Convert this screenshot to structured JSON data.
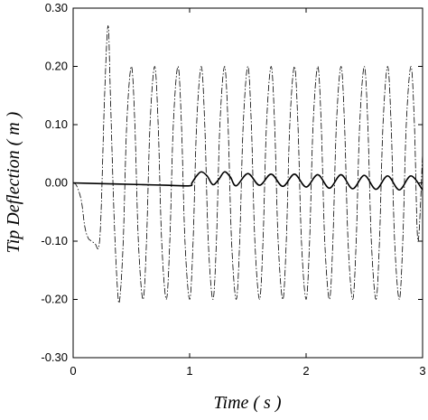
{
  "chart_data": {
    "type": "line",
    "xlabel": "Time ( s )",
    "ylabel": "Tip Deflection ( m )",
    "xlim": [
      0,
      3
    ],
    "ylim": [
      -0.3,
      0.3
    ],
    "x_ticks": [
      "0",
      "1",
      "2",
      "3"
    ],
    "y_ticks": [
      "0.30",
      "0.20",
      "0.10",
      "0.00",
      "-0.10",
      "-0.20",
      "-0.30"
    ],
    "grid": false,
    "legend": "none",
    "series": [
      {
        "style": "solid",
        "color": "#000000",
        "x": [
          0.0,
          0.2,
          0.4,
          0.6,
          0.8,
          1.0,
          1.02,
          1.06,
          1.1,
          1.15,
          1.2,
          1.25,
          1.3,
          1.35,
          1.4,
          1.5,
          1.6,
          1.7,
          1.8,
          1.9,
          2.0,
          2.1,
          2.2,
          2.3,
          2.4,
          2.5,
          2.6,
          2.7,
          2.8,
          2.9,
          3.0
        ],
        "y": [
          0.0,
          -0.001,
          -0.002,
          -0.003,
          -0.004,
          -0.005,
          0.0,
          0.012,
          0.019,
          0.012,
          -0.003,
          0.006,
          0.019,
          0.01,
          -0.005,
          0.016,
          -0.004,
          0.015,
          -0.006,
          0.015,
          -0.007,
          0.014,
          -0.009,
          0.014,
          -0.01,
          0.013,
          -0.011,
          0.012,
          -0.012,
          0.012,
          -0.012
        ]
      },
      {
        "style": "dash-dot",
        "color": "#000000",
        "x": [
          0.0,
          0.03,
          0.07,
          0.1,
          0.13,
          0.16,
          0.19,
          0.22,
          0.24,
          0.27,
          0.3,
          0.32,
          0.35,
          0.38,
          0.4,
          0.43,
          0.46,
          0.5,
          0.53,
          0.56,
          0.6,
          0.63,
          0.66,
          0.7,
          0.73,
          0.76,
          0.8,
          0.83,
          0.86,
          0.9,
          0.93,
          0.96,
          1.0,
          1.03,
          1.06,
          1.1,
          1.13,
          1.16,
          1.2,
          1.23,
          1.26,
          1.3,
          1.33,
          1.36,
          1.4,
          1.43,
          1.46,
          1.5,
          1.53,
          1.56,
          1.6,
          1.63,
          1.66,
          1.7,
          1.73,
          1.76,
          1.8,
          1.83,
          1.86,
          1.9,
          1.93,
          1.96,
          2.0,
          2.03,
          2.06,
          2.1,
          2.13,
          2.16,
          2.2,
          2.23,
          2.26,
          2.3,
          2.33,
          2.36,
          2.4,
          2.43,
          2.46,
          2.5,
          2.53,
          2.56,
          2.6,
          2.63,
          2.66,
          2.7,
          2.73,
          2.76,
          2.8,
          2.83,
          2.86,
          2.9,
          2.93,
          2.96,
          3.0
        ],
        "y": [
          0.0,
          -0.005,
          -0.03,
          -0.075,
          -0.095,
          -0.1,
          -0.105,
          -0.11,
          -0.05,
          0.15,
          0.27,
          0.15,
          -0.05,
          -0.18,
          -0.2,
          -0.1,
          0.1,
          0.2,
          0.1,
          -0.1,
          -0.2,
          -0.1,
          0.1,
          0.2,
          0.1,
          -0.1,
          -0.2,
          -0.1,
          0.1,
          0.2,
          0.1,
          -0.1,
          -0.2,
          -0.1,
          0.1,
          0.2,
          0.1,
          -0.1,
          -0.2,
          -0.1,
          0.1,
          0.2,
          0.1,
          -0.1,
          -0.2,
          -0.1,
          0.1,
          0.2,
          0.1,
          -0.1,
          -0.2,
          -0.1,
          0.1,
          0.2,
          0.1,
          -0.1,
          -0.2,
          -0.1,
          0.1,
          0.2,
          0.1,
          -0.1,
          -0.2,
          -0.1,
          0.1,
          0.2,
          0.1,
          -0.1,
          -0.2,
          -0.1,
          0.1,
          0.2,
          0.1,
          -0.1,
          -0.2,
          -0.1,
          0.1,
          0.2,
          0.1,
          -0.1,
          -0.2,
          -0.1,
          0.1,
          0.2,
          0.1,
          -0.1,
          -0.2,
          -0.1,
          0.1,
          0.2,
          0.1,
          -0.1,
          0.05
        ]
      }
    ]
  }
}
